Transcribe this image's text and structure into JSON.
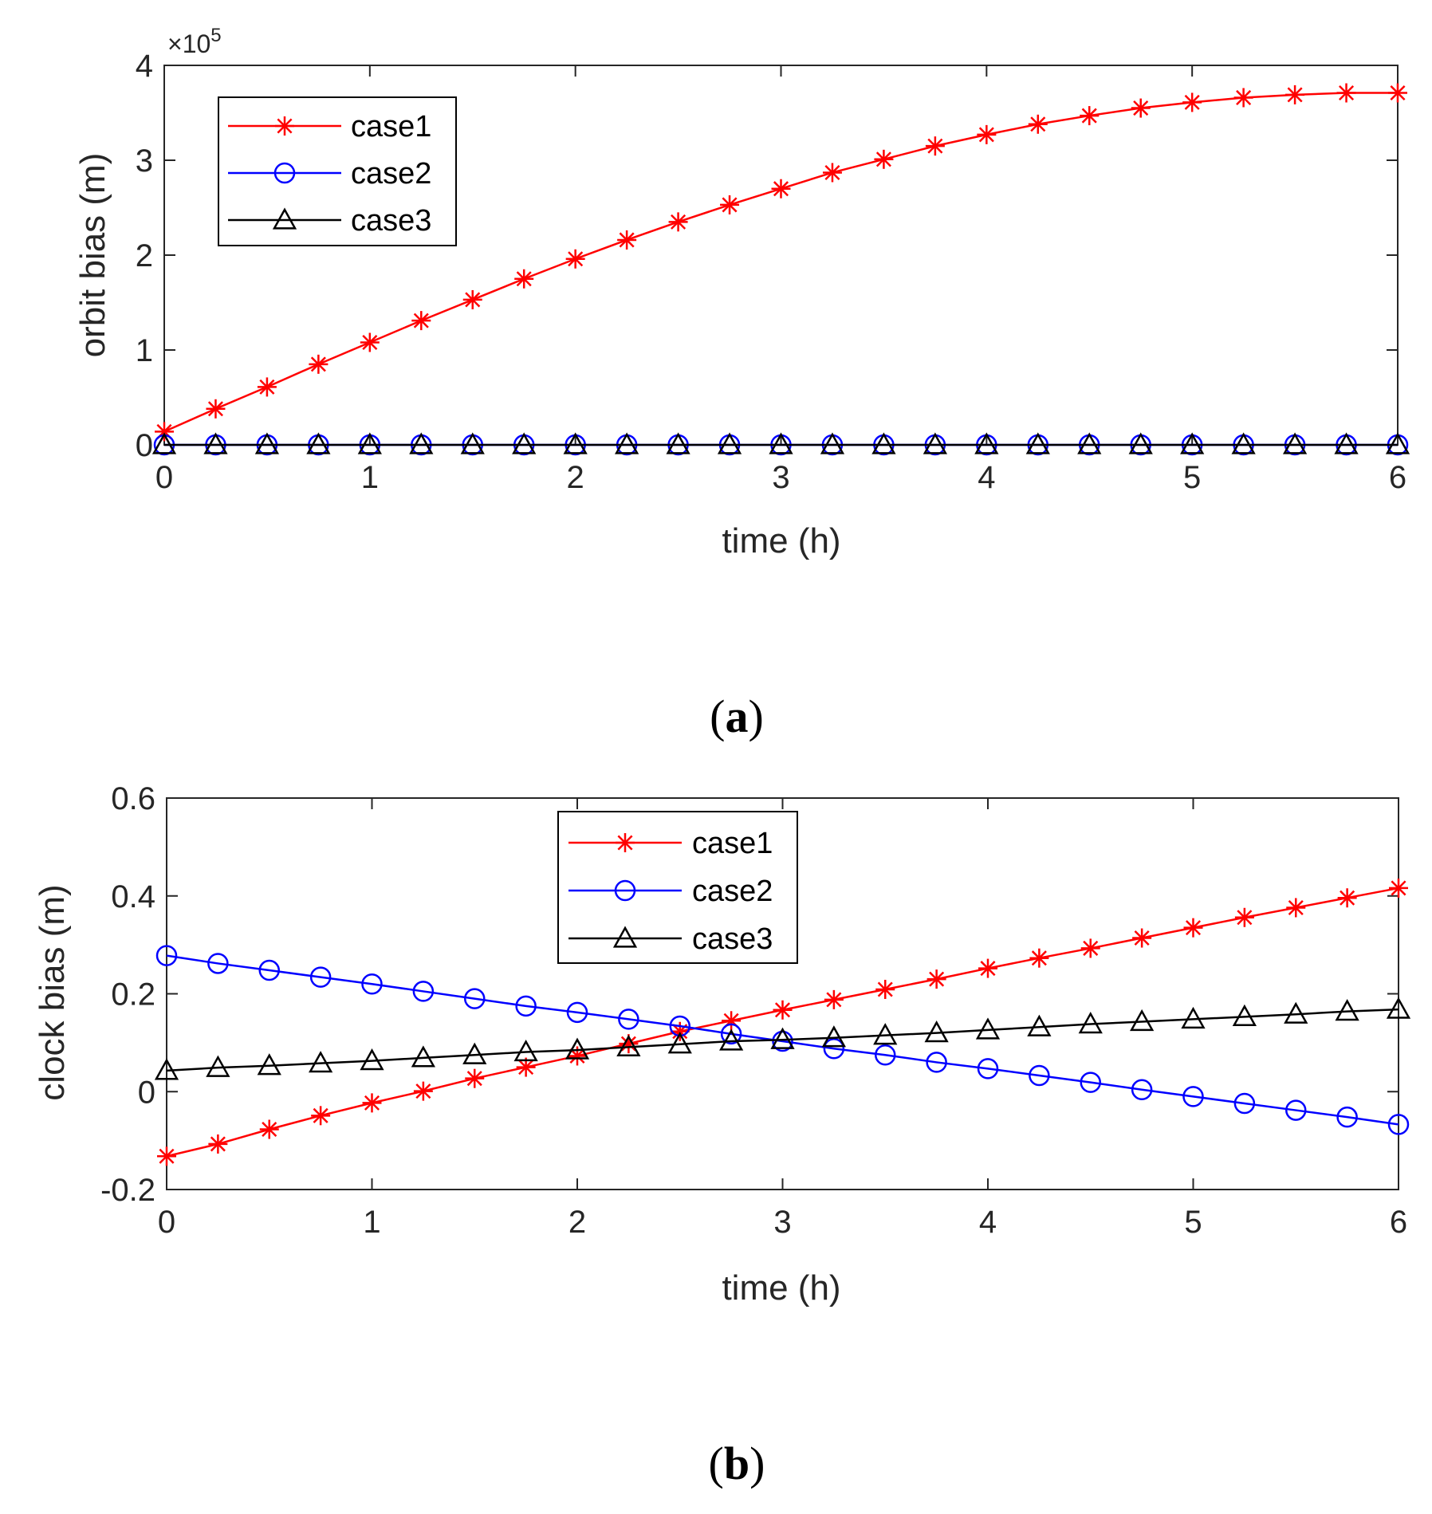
{
  "chart_data": [
    {
      "type": "line",
      "panel_label": "a",
      "xlabel": "time (h)",
      "ylabel": "orbit bias (m)",
      "y_multiplier": "×10",
      "y_exponent": "5",
      "xlim": [
        0,
        6
      ],
      "ylim": [
        0,
        4
      ],
      "xticks": [
        0,
        1,
        2,
        3,
        4,
        5,
        6
      ],
      "yticks": [
        0,
        1,
        2,
        3,
        4
      ],
      "legend_position": "top-left",
      "x": [
        0,
        0.25,
        0.5,
        0.75,
        1,
        1.25,
        1.5,
        1.75,
        2,
        2.25,
        2.5,
        2.75,
        3,
        3.25,
        3.5,
        3.75,
        4,
        4.25,
        4.5,
        4.75,
        5,
        5.25,
        5.5,
        5.75,
        6
      ],
      "series": [
        {
          "name": "case1",
          "color": "#ff0000",
          "marker": "asterisk",
          "values": [
            0.14,
            0.38,
            0.61,
            0.85,
            1.08,
            1.31,
            1.53,
            1.75,
            1.96,
            2.16,
            2.35,
            2.53,
            2.7,
            2.87,
            3.01,
            3.15,
            3.27,
            3.38,
            3.47,
            3.55,
            3.61,
            3.66,
            3.69,
            3.71,
            3.71
          ]
        },
        {
          "name": "case2",
          "color": "#0000ff",
          "marker": "circle",
          "values": [
            0,
            0,
            0,
            0,
            0,
            0,
            0,
            0,
            0,
            0,
            0,
            0,
            0,
            0,
            0,
            0,
            0,
            0,
            0,
            0,
            0,
            0,
            0,
            0,
            0
          ]
        },
        {
          "name": "case3",
          "color": "#000000",
          "marker": "triangle",
          "values": [
            0,
            0,
            0,
            0,
            0,
            0,
            0,
            0,
            0,
            0,
            0,
            0,
            0,
            0,
            0,
            0,
            0,
            0,
            0,
            0,
            0,
            0,
            0,
            0,
            0
          ]
        }
      ]
    },
    {
      "type": "line",
      "panel_label": "b",
      "xlabel": "time (h)",
      "ylabel": "clock bias (m)",
      "xlim": [
        0,
        6
      ],
      "ylim": [
        -0.2,
        0.6
      ],
      "xticks": [
        0,
        1,
        2,
        3,
        4,
        5,
        6
      ],
      "yticks": [
        -0.2,
        0,
        0.2,
        0.4,
        0.6
      ],
      "ytick_labels": [
        "-0.2",
        "0",
        "0.2",
        "0.4",
        "0.6"
      ],
      "legend_position": "top-center",
      "x": [
        0,
        0.25,
        0.5,
        0.75,
        1,
        1.25,
        1.5,
        1.75,
        2,
        2.25,
        2.5,
        2.75,
        3,
        3.25,
        3.5,
        3.75,
        4,
        4.25,
        4.5,
        4.75,
        5,
        5.25,
        5.5,
        5.75,
        6
      ],
      "series": [
        {
          "name": "case1",
          "color": "#ff0000",
          "marker": "asterisk",
          "values": [
            -0.132,
            -0.107,
            -0.077,
            -0.049,
            -0.023,
            0.001,
            0.027,
            0.05,
            0.073,
            0.098,
            0.123,
            0.145,
            0.167,
            0.188,
            0.209,
            0.23,
            0.252,
            0.273,
            0.293,
            0.314,
            0.335,
            0.356,
            0.376,
            0.396,
            0.416
          ]
        },
        {
          "name": "case2",
          "color": "#0000ff",
          "marker": "circle",
          "values": [
            0.278,
            0.262,
            0.248,
            0.234,
            0.22,
            0.205,
            0.19,
            0.175,
            0.162,
            0.148,
            0.134,
            0.118,
            0.103,
            0.088,
            0.075,
            0.06,
            0.047,
            0.033,
            0.019,
            0.004,
            -0.01,
            -0.024,
            -0.038,
            -0.052,
            -0.067
          ]
        },
        {
          "name": "case3",
          "color": "#000000",
          "marker": "triangle",
          "values": [
            0.043,
            0.049,
            0.053,
            0.058,
            0.063,
            0.069,
            0.075,
            0.081,
            0.085,
            0.091,
            0.097,
            0.103,
            0.106,
            0.11,
            0.115,
            0.12,
            0.126,
            0.132,
            0.138,
            0.143,
            0.148,
            0.153,
            0.158,
            0.164,
            0.168
          ]
        }
      ]
    }
  ]
}
